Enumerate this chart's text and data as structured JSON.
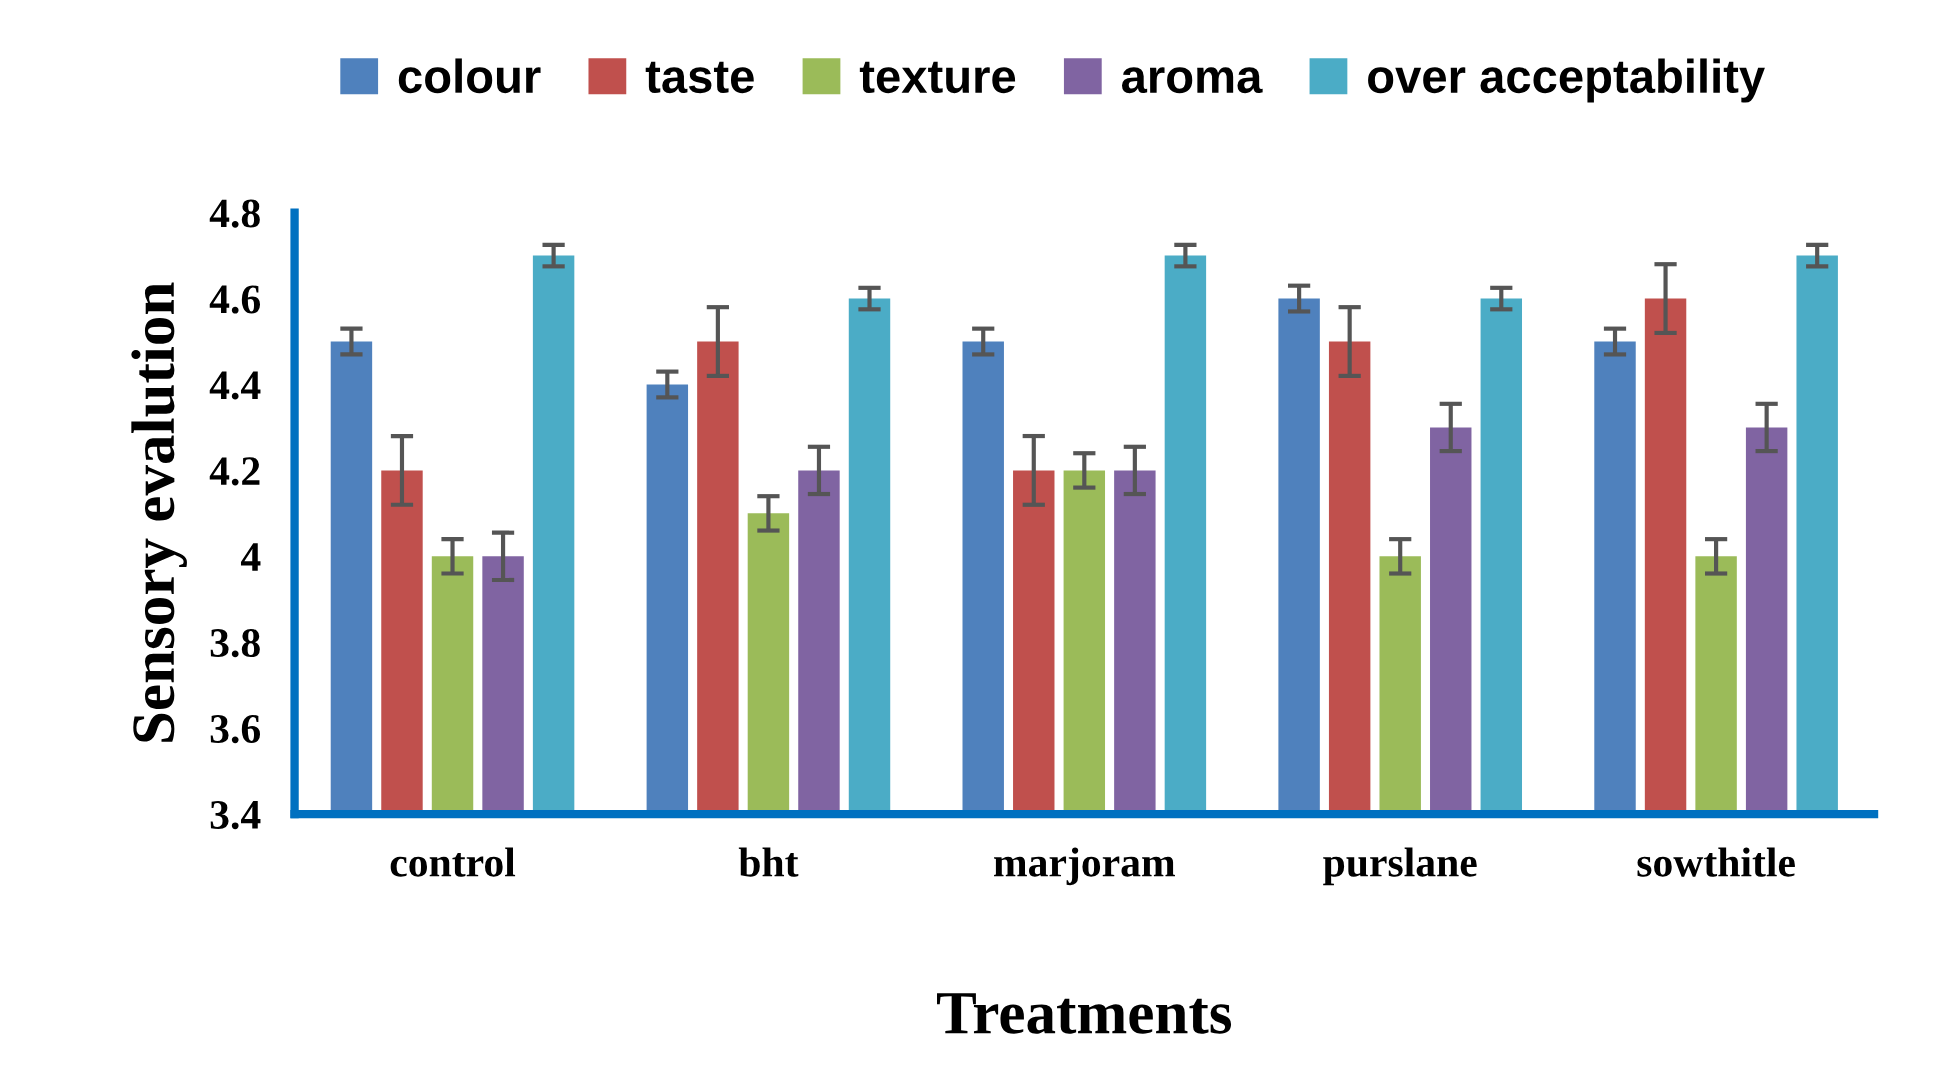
{
  "chart_data": {
    "type": "bar",
    "xlabel": "Treatments",
    "ylabel": "Sensory evalution",
    "categories": [
      "control",
      "bht",
      "marjoram",
      "purslane",
      "sowthitle"
    ],
    "series": [
      {
        "name": "colour",
        "color": "#4f81bd",
        "values": [
          4.5,
          4.4,
          4.5,
          4.6,
          4.5
        ],
        "errors": [
          0.03,
          0.03,
          0.03,
          0.03,
          0.03
        ]
      },
      {
        "name": "taste",
        "color": "#c0504d",
        "values": [
          4.2,
          4.5,
          4.2,
          4.5,
          4.6
        ],
        "errors": [
          0.08,
          0.08,
          0.08,
          0.08,
          0.08
        ]
      },
      {
        "name": "texture",
        "color": "#9bbb59",
        "values": [
          4.0,
          4.1,
          4.2,
          4.0,
          4.0
        ],
        "errors": [
          0.04,
          0.04,
          0.04,
          0.04,
          0.04
        ]
      },
      {
        "name": "aroma",
        "color": "#8064a2",
        "values": [
          4.0,
          4.2,
          4.2,
          4.3,
          4.3
        ],
        "errors": [
          0.055,
          0.055,
          0.055,
          0.055,
          0.055
        ]
      },
      {
        "name": "over acceptability",
        "color": "#4bacc6",
        "values": [
          4.7,
          4.6,
          4.7,
          4.6,
          4.7
        ],
        "errors": [
          0.025,
          0.025,
          0.025,
          0.025,
          0.025
        ]
      }
    ],
    "ylim": [
      3.4,
      4.8
    ],
    "yticks": [
      3.4,
      3.6,
      3.8,
      4,
      4.2,
      4.4,
      4.6,
      4.8
    ],
    "grid": false,
    "legend": "top"
  }
}
